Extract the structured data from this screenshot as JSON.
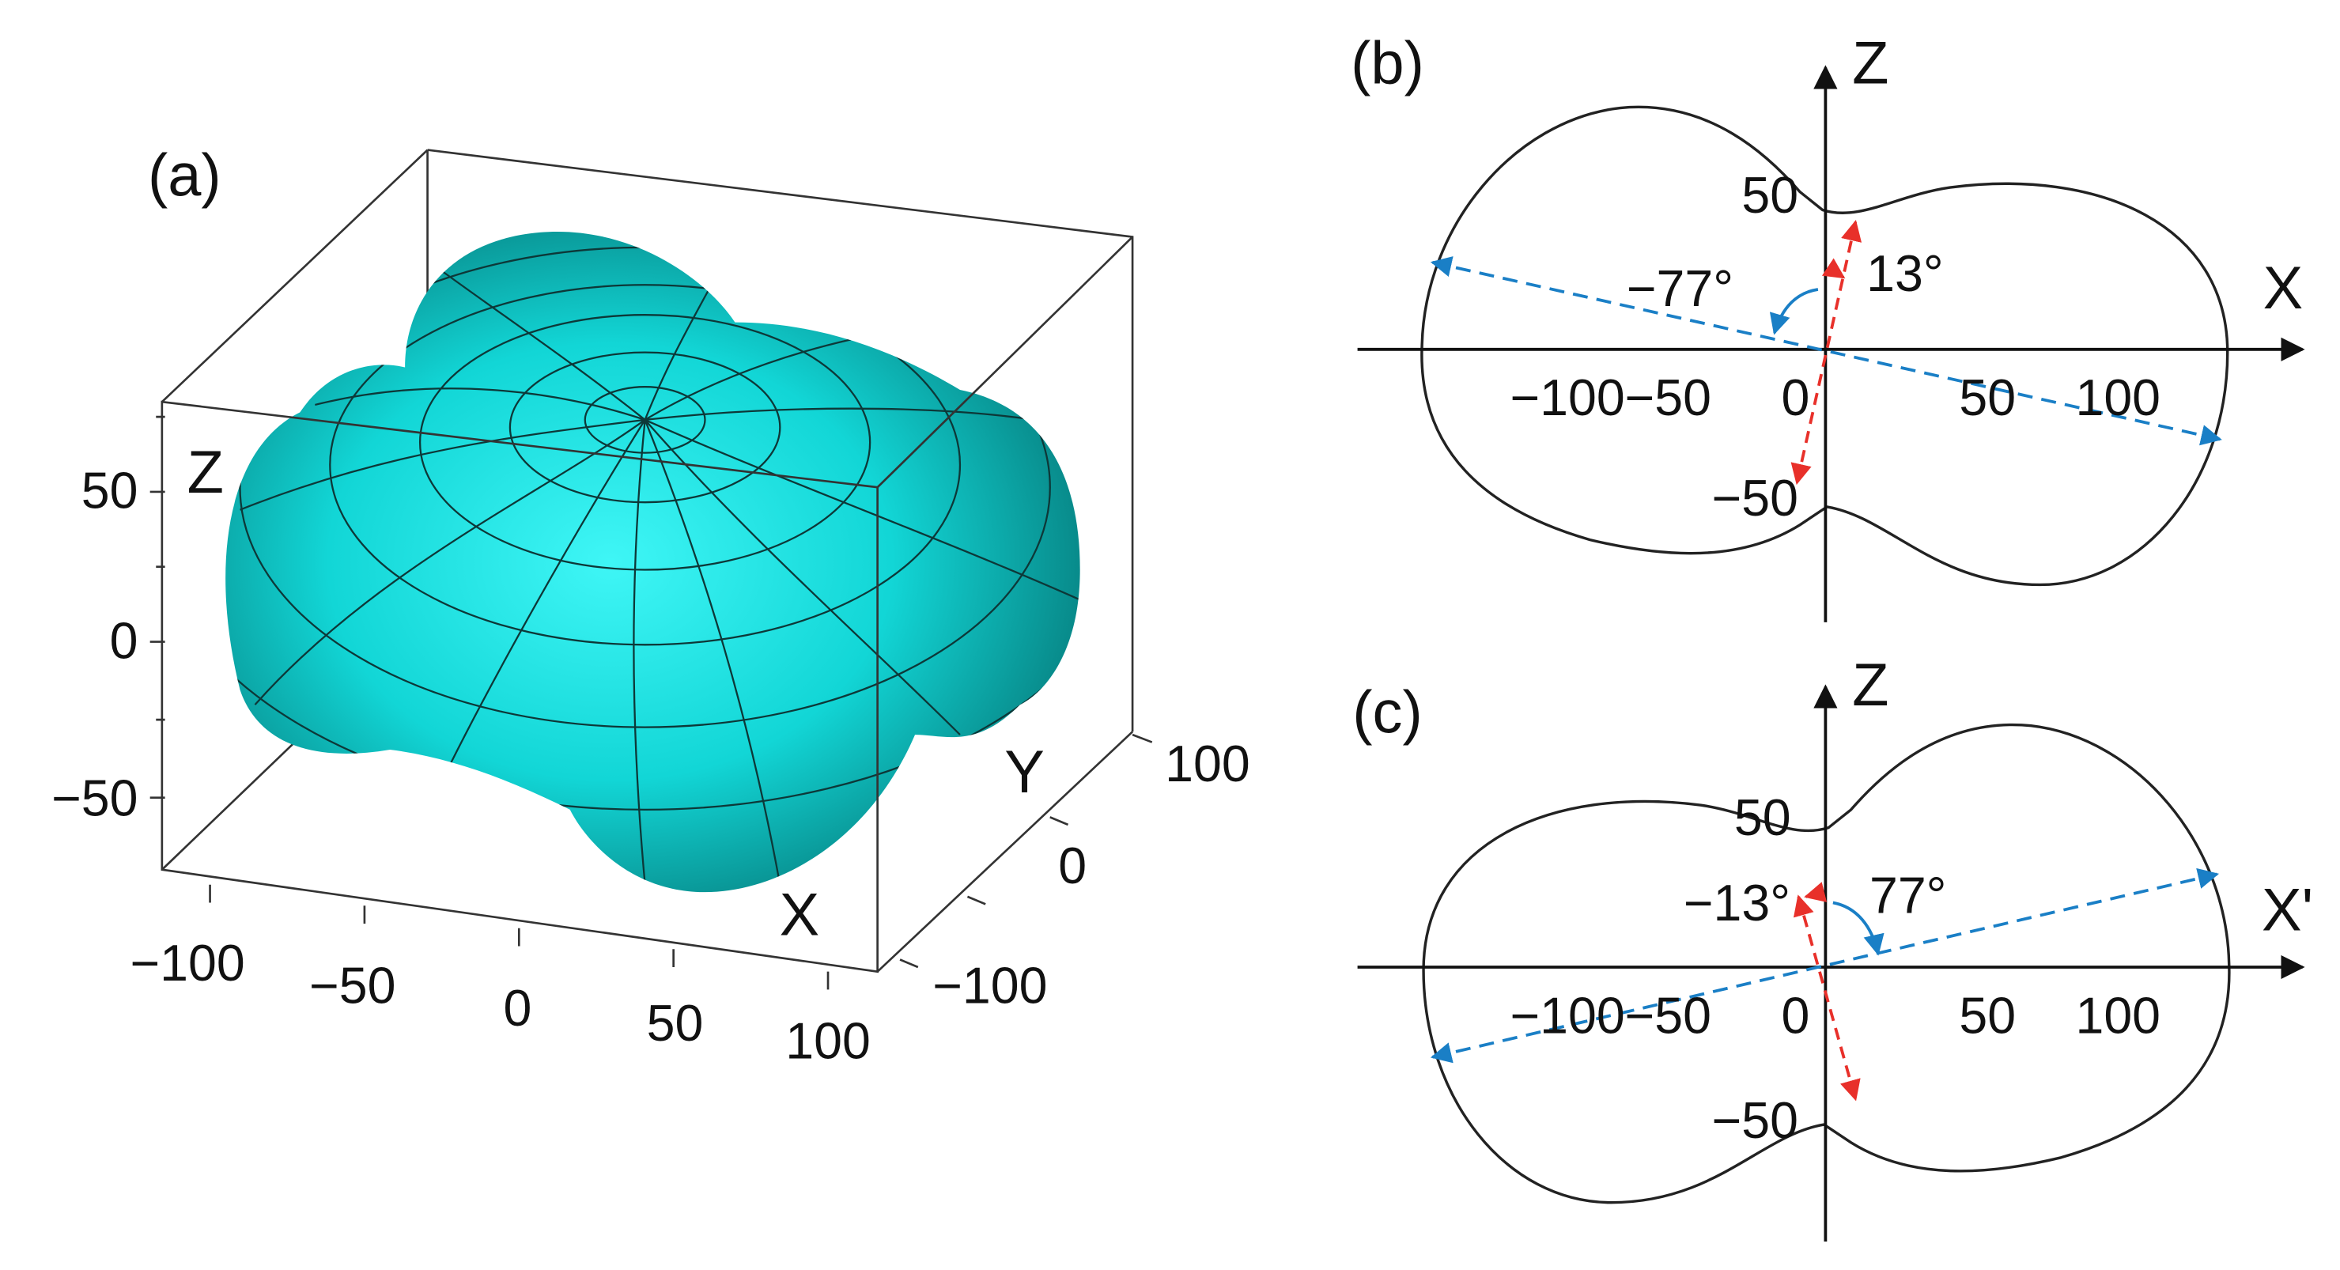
{
  "panel_a": {
    "label": "(a)",
    "z_axis_label": "Z",
    "x_axis_label": "X",
    "y_axis_label": "Y",
    "z_ticks": [
      "50",
      "0",
      "−50"
    ],
    "x_ticks": [
      "−100",
      "−50",
      "0",
      "50",
      "100"
    ],
    "y_ticks": [
      "100",
      "0",
      "−100"
    ]
  },
  "panel_b": {
    "label": "(b)",
    "vertical_axis_label": "Z",
    "horizontal_axis_label": "X",
    "x_ticks": [
      "−100",
      "−50",
      "0",
      "50",
      "100"
    ],
    "z_ticks": [
      "50",
      "−50"
    ],
    "angles": [
      "−77°",
      "13°"
    ]
  },
  "panel_c": {
    "label": "(c)",
    "vertical_axis_label": "Z",
    "horizontal_axis_label": "X'",
    "x_ticks": [
      "−100",
      "−50",
      "0",
      "50",
      "100"
    ],
    "z_ticks": [
      "50",
      "−50"
    ],
    "angles": [
      "−13°",
      "77°"
    ]
  }
}
